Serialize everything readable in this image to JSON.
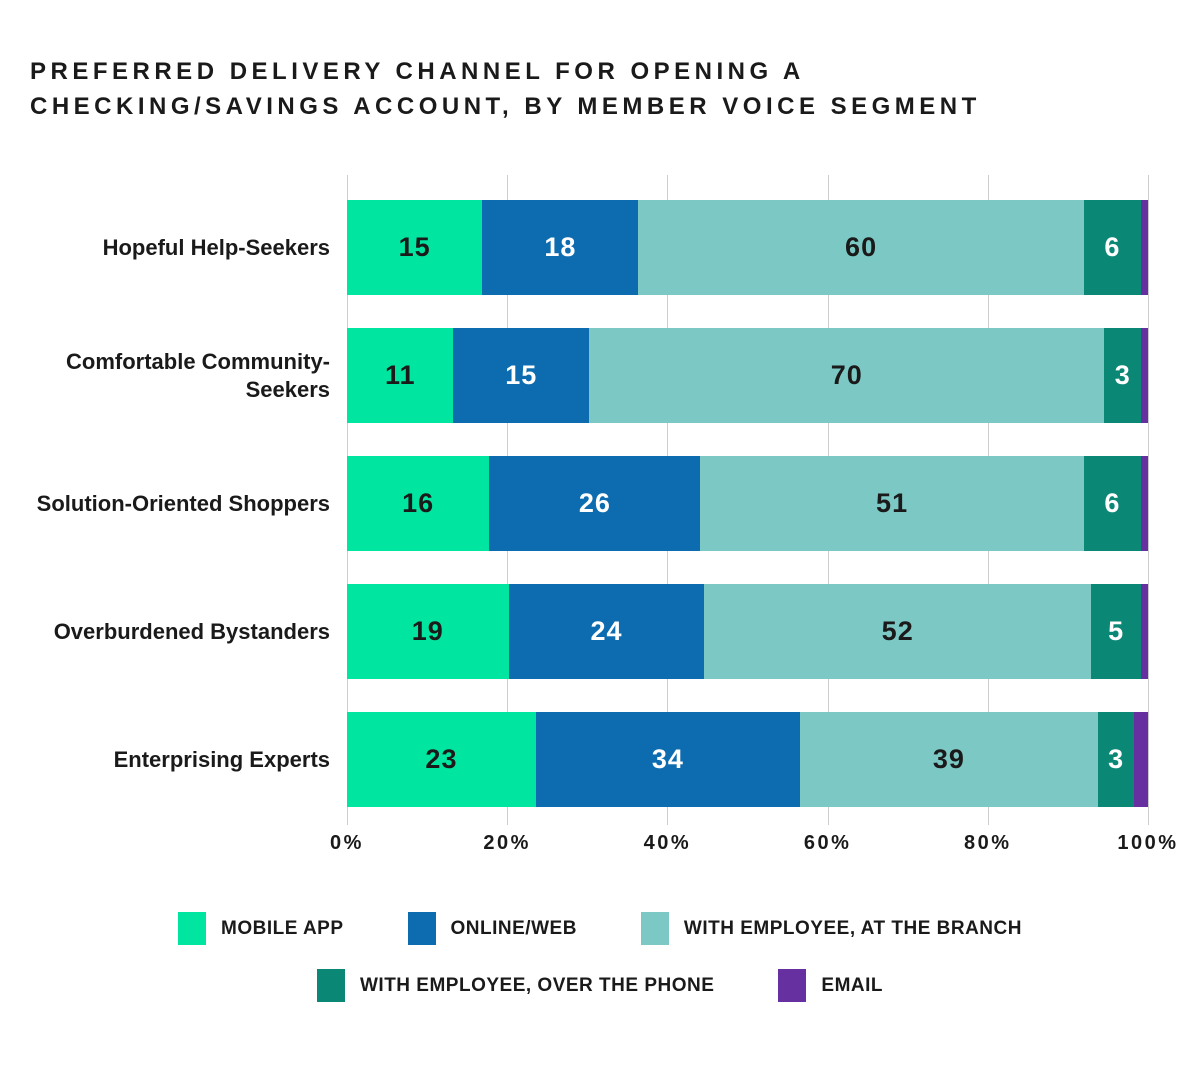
{
  "title_lines": [
    "PREFERRED DELIVERY CHANNEL FOR OPENING A",
    "CHECKING/SAVINGS ACCOUNT, BY MEMBER VOICE SEGMENT"
  ],
  "colors": {
    "mobile_app": "#00E6A0",
    "online_web": "#0D6CB0",
    "branch": "#7CC8C4",
    "phone": "#0B8776",
    "email": "#6730A0",
    "gridline": "#CCCCCC",
    "text_dark": "#1A1A1A",
    "text_light": "#FFFFFF"
  },
  "chart_data": {
    "type": "bar",
    "variant": "horizontal-stacked",
    "title": "PREFERRED DELIVERY CHANNEL FOR OPENING A CHECKING/SAVINGS ACCOUNT, BY MEMBER VOICE SEGMENT",
    "categories": [
      "Hopeful Help-Seekers",
      "Comfortable Community-Seekers",
      "Solution-Oriented Shoppers",
      "Overburdened Bystanders",
      "Enterprising Experts"
    ],
    "series": [
      {
        "name": "MOBILE APP",
        "color": "#00E6A0",
        "label_color": "#1A1A1A",
        "values": [
          15,
          11,
          16,
          19,
          23
        ]
      },
      {
        "name": "ONLINE/WEB",
        "color": "#0D6CB0",
        "label_color": "#FFFFFF",
        "values": [
          18,
          15,
          26,
          24,
          34
        ]
      },
      {
        "name": "WITH EMPLOYEE, AT THE BRANCH",
        "color": "#7CC8C4",
        "label_color": "#1A1A1A",
        "values": [
          60,
          70,
          51,
          52,
          39
        ]
      },
      {
        "name": "WITH EMPLOYEE, OVER THE PHONE",
        "color": "#0B8776",
        "label_color": "#FFFFFF",
        "values": [
          6,
          3,
          6,
          5,
          3
        ]
      },
      {
        "name": "EMAIL",
        "color": "#6730A0",
        "label_color": "#FFFFFF",
        "values": [
          1,
          1,
          1,
          1,
          2
        ]
      }
    ],
    "x_ticks": [
      "0%",
      "20%",
      "40%",
      "60%",
      "80%",
      "100%"
    ],
    "xlim": [
      0,
      100
    ],
    "grid": "vertical",
    "value_label_min": 3,
    "legend_position": "bottom-center",
    "legend_rows": [
      [
        0,
        1,
        2
      ],
      [
        3,
        4
      ]
    ]
  }
}
